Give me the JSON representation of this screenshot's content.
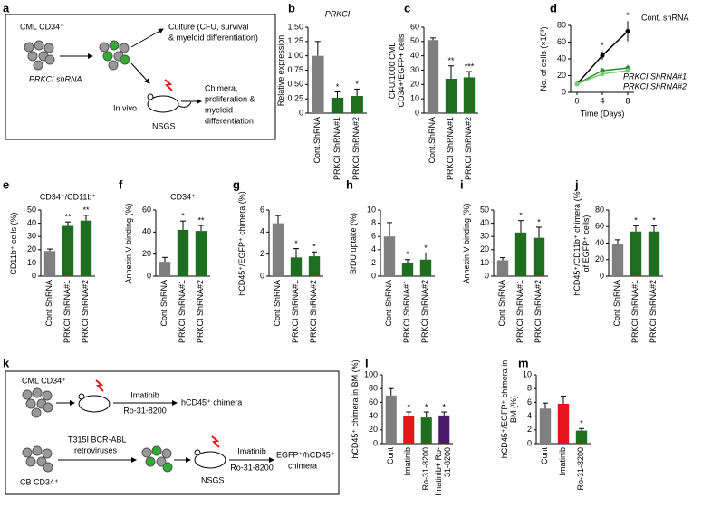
{
  "chart_data": [
    {
      "panel": "b",
      "type": "bar",
      "title": "PRKCI",
      "y_label": "Relative expression",
      "categories": [
        "Cont.ShRNA",
        "PRKCI ShRNA#1",
        "PRKCI ShRNA#2"
      ],
      "values": [
        1.0,
        0.27,
        0.3
      ],
      "errors": [
        0.25,
        0.1,
        0.12
      ],
      "colors": [
        "#7f7f7f",
        "#1f6e1f",
        "#1f6e1f"
      ],
      "value_annotations": [
        null,
        "*",
        "*"
      ],
      "ylim": [
        0,
        1.5
      ],
      "yticks": [
        0,
        0.25,
        {
          "value": 0.5,
          "label": "0.50"
        },
        0.75,
        {
          "value": 1,
          "label": "1.00"
        },
        1.25,
        {
          "value": 1.5,
          "label": "1.50"
        }
      ]
    },
    {
      "panel": "c",
      "type": "bar",
      "y_label": "CFU/1000 CML CD34+/EGFP+ cells",
      "categories": [
        "Cont.ShRNA",
        "PRKCI ShRNA#1",
        "PRKCI ShRNA#2"
      ],
      "values": [
        51,
        24,
        25
      ],
      "errors": [
        1.5,
        9,
        4
      ],
      "colors": [
        "#7f7f7f",
        "#1f6e1f",
        "#1f6e1f"
      ],
      "value_annotations": [
        null,
        "**",
        "***"
      ],
      "ylim": [
        0,
        60
      ],
      "yticks": [
        0,
        10,
        20,
        30,
        40,
        50,
        60
      ]
    },
    {
      "panel": "d",
      "type": "line",
      "x_label": "Time (Days)",
      "y_label": "No. of cells (×10³)",
      "x": [
        0,
        4,
        8
      ],
      "xlim": [
        -1,
        9
      ],
      "xticks": [
        0,
        4,
        8
      ],
      "ylim": [
        0,
        80
      ],
      "yticks": [
        0,
        20,
        40,
        60,
        80
      ],
      "series": [
        {
          "name": "Cont. shRNA",
          "color": "#000000",
          "values": [
            10,
            44,
            73
          ],
          "errors": [
            2,
            5,
            12
          ]
        },
        {
          "name": "PRKCI ShRNA#1",
          "color": "#2e8b2e",
          "values": [
            10,
            26,
            29
          ],
          "errors": [
            1,
            3,
            4
          ]
        },
        {
          "name": "PRKCI ShRNA#2",
          "color": "#7ccd7c",
          "values": [
            10,
            22,
            26
          ],
          "errors": [
            1,
            3,
            3
          ]
        }
      ],
      "value_annotations": [
        null,
        "*",
        "*"
      ]
    },
    {
      "panel": "e",
      "type": "bar",
      "title": "CD34⁻/CD11b⁺",
      "y_label": "CD11b⁺ cells (%)",
      "categories": [
        "Cont ShRNA",
        "PRKCI ShRNA#1",
        "PRKCI ShRNA#2"
      ],
      "values": [
        19,
        38,
        42
      ],
      "errors": [
        1.5,
        3,
        4
      ],
      "colors": [
        "#7f7f7f",
        "#1f6e1f",
        "#1f6e1f"
      ],
      "value_annotations": [
        null,
        "**",
        "**"
      ],
      "ylim": [
        0,
        50
      ],
      "yticks": [
        0,
        10,
        20,
        30,
        40,
        50
      ]
    },
    {
      "panel": "f",
      "type": "bar",
      "title": "CD34⁺",
      "y_label": "Annexin V binding (%)",
      "categories": [
        "Cont ShRNA",
        "PRKCI ShRNA#1",
        "PRKCI ShRNA#2"
      ],
      "values": [
        13,
        42,
        41
      ],
      "errors": [
        4,
        8,
        5
      ],
      "colors": [
        "#7f7f7f",
        "#1f6e1f",
        "#1f6e1f"
      ],
      "value_annotations": [
        null,
        "*",
        "**"
      ],
      "ylim": [
        0,
        60
      ],
      "yticks": [
        0,
        20,
        40,
        60
      ]
    },
    {
      "panel": "g",
      "type": "bar",
      "y_label": "hCD45⁺/EGFP⁺ chimera (%)",
      "categories": [
        "Cont ShRNA",
        "PRKCI ShRNA#1",
        "PRKCI ShRNA#2"
      ],
      "values": [
        4.8,
        1.7,
        1.8
      ],
      "errors": [
        0.7,
        0.8,
        0.4
      ],
      "colors": [
        "#7f7f7f",
        "#1f6e1f",
        "#1f6e1f"
      ],
      "value_annotations": [
        null,
        "*",
        "*"
      ],
      "ylim": [
        0,
        6
      ],
      "yticks": [
        0,
        2,
        4,
        6
      ]
    },
    {
      "panel": "h",
      "type": "bar",
      "y_label": "BrDU uptake (%)",
      "categories": [
        "Cont ShRNA",
        "PRKCI ShRNA#1",
        "PRKCI ShRNA#2"
      ],
      "values": [
        6,
        2,
        2.5
      ],
      "errors": [
        2.1,
        0.5,
        1
      ],
      "colors": [
        "#7f7f7f",
        "#1f6e1f",
        "#1f6e1f"
      ],
      "value_annotations": [
        null,
        "*",
        "*"
      ],
      "ylim": [
        0,
        10
      ],
      "yticks": [
        0,
        2,
        4,
        6,
        8,
        10
      ]
    },
    {
      "panel": "i",
      "type": "bar",
      "y_label": "Annexin V binding (%)",
      "categories": [
        "Cont ShRNA",
        "PRKCI ShRNA#1",
        "PRKCI ShRNA#2"
      ],
      "values": [
        12,
        33,
        29
      ],
      "errors": [
        2,
        9,
        8
      ],
      "colors": [
        "#7f7f7f",
        "#1f6e1f",
        "#1f6e1f"
      ],
      "value_annotations": [
        null,
        "*",
        "*"
      ],
      "ylim": [
        0,
        50
      ],
      "yticks": [
        0,
        10,
        20,
        30,
        40,
        50
      ]
    },
    {
      "panel": "j",
      "type": "bar",
      "y_label": "hCD45⁺/CD11b⁺ chimera (% of EGFP⁺ cells)",
      "categories": [
        "Cont ShRNA",
        "PRKCI ShRNA#1",
        "PRKCI ShRNA#2"
      ],
      "values": [
        39,
        54,
        54
      ],
      "errors": [
        5,
        7,
        7
      ],
      "colors": [
        "#7f7f7f",
        "#1f6e1f",
        "#1f6e1f"
      ],
      "value_annotations": [
        null,
        "*",
        "*"
      ],
      "ylim": [
        0,
        80
      ],
      "yticks": [
        0,
        20,
        40,
        60,
        80
      ]
    },
    {
      "panel": "l",
      "type": "bar",
      "y_label": "hCD45⁺ chimera in BM (%)",
      "categories": [
        "Cont",
        "Imatinib",
        "Ro-31-8200",
        "Imatinib+ Ro-31-8200"
      ],
      "values": [
        70,
        40,
        38,
        41
      ],
      "errors": [
        10,
        6,
        8,
        5
      ],
      "colors": [
        "#7f7f7f",
        "#e8141b",
        "#1f6e1f",
        "#4b1a6b"
      ],
      "value_annotations": [
        null,
        "*",
        "*",
        "*"
      ],
      "ylim": [
        0,
        100
      ],
      "yticks": [
        0,
        20,
        40,
        60,
        80,
        100
      ]
    },
    {
      "panel": "m",
      "type": "bar",
      "y_label": "hCD45⁺/EGFP⁺ chimera in BM (%)",
      "categories": [
        "Cont",
        "Imatinib",
        "Ro-31-8200"
      ],
      "values": [
        5.1,
        5.8,
        1.9
      ],
      "errors": [
        0.8,
        1.1,
        0.3
      ],
      "colors": [
        "#7f7f7f",
        "#e8141b",
        "#1f6e1f"
      ],
      "value_annotations": [
        null,
        null,
        "*"
      ],
      "ylim": [
        0,
        10
      ],
      "yticks": [
        0,
        2,
        4,
        6,
        8,
        10
      ]
    }
  ],
  "diagrams": [
    {
      "panel": "a",
      "labels": [
        "CML CD34⁺",
        "PRKCI shRNA",
        "Culture (CFU, survival",
        "& myeloid differentiation)",
        "In vivo",
        "NSGS",
        "Chimera,",
        "proliferation &",
        "myeloid",
        "differentiation"
      ]
    },
    {
      "panel": "k",
      "labels": [
        "CML CD34⁺",
        "Imatinib",
        "Ro-31-8200",
        "hCD45⁺ chimera",
        "T315I BCR-ABL",
        "retroviruses",
        "CB CD34⁺",
        "NSGS",
        "Imatinib",
        "Ro-31-8200",
        "EGFP⁺/hCD45⁺",
        "chimera"
      ]
    }
  ]
}
